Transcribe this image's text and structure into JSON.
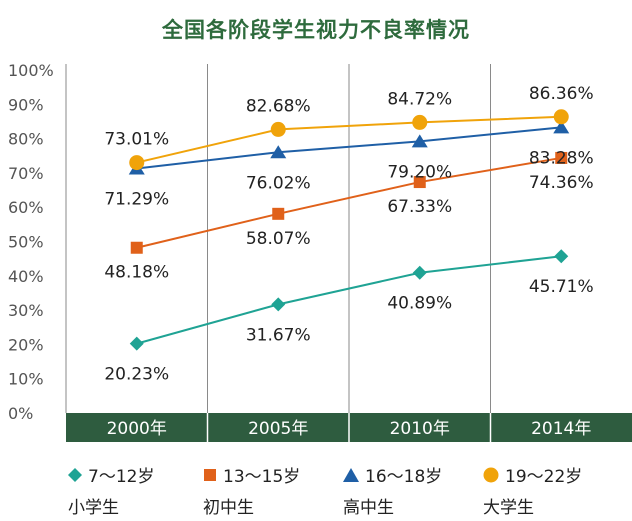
{
  "chart_data": {
    "type": "line",
    "title": "全国各阶段学生视力不良率情况",
    "categories": [
      "2000年",
      "2005年",
      "2010年",
      "2014年"
    ],
    "y_ticks": [
      "0%",
      "10%",
      "20%",
      "30%",
      "40%",
      "50%",
      "60%",
      "70%",
      "80%",
      "90%",
      "100%"
    ],
    "ylim": [
      0,
      100
    ],
    "series": [
      {
        "name": "7～12岁",
        "group": "小学生",
        "marker": "diamond",
        "color": "#1fa394",
        "values": [
          20.23,
          31.67,
          40.89,
          45.71
        ],
        "labels": [
          "20.23%",
          "31.67%",
          "40.89%",
          "45.71%"
        ]
      },
      {
        "name": "13～15岁",
        "group": "初中生",
        "marker": "square",
        "color": "#e0611a",
        "values": [
          48.18,
          58.07,
          67.33,
          74.36
        ],
        "labels": [
          "48.18%",
          "58.07%",
          "67.33%",
          "74.36%"
        ]
      },
      {
        "name": "16～18岁",
        "group": "高中生",
        "marker": "triangle",
        "color": "#1f5fa6",
        "values": [
          71.29,
          76.02,
          79.2,
          83.28
        ],
        "labels": [
          "71.29%",
          "76.02%",
          "79.20%",
          "83.28%"
        ]
      },
      {
        "name": "19～22岁",
        "group": "大学生",
        "marker": "circle",
        "color": "#f0a30a",
        "values": [
          73.01,
          82.68,
          84.72,
          86.36
        ],
        "labels": [
          "73.01%",
          "82.68%",
          "84.72%",
          "86.36%"
        ]
      }
    ],
    "x_band_color": "#2e5c3f"
  }
}
